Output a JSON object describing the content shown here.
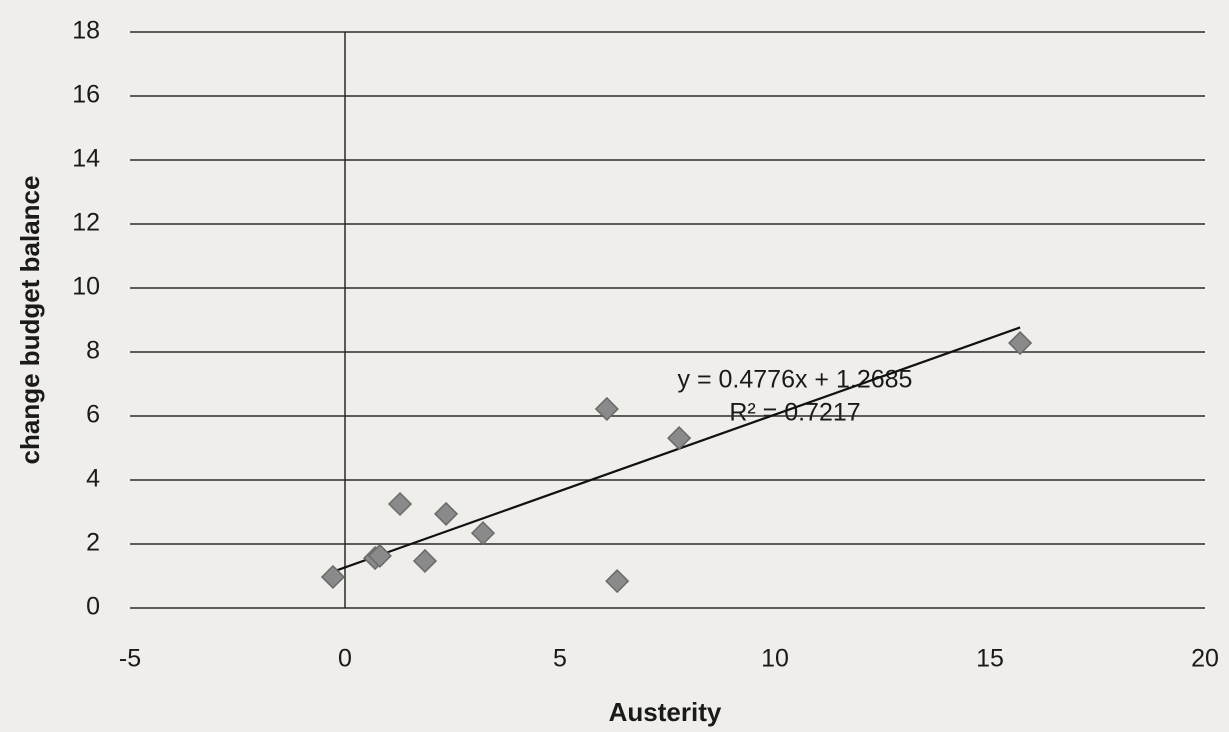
{
  "chart_data": {
    "type": "scatter",
    "xlabel": "Austerity",
    "ylabel": "change budget balance",
    "x": [
      -0.28,
      0.7,
      0.81,
      1.28,
      1.86,
      2.35,
      3.21,
      6.09,
      6.33,
      7.77,
      15.7
    ],
    "values": [
      0.97,
      1.56,
      1.63,
      3.25,
      1.47,
      2.94,
      2.34,
      6.22,
      0.84,
      5.31,
      8.28
    ],
    "color": "#8a8a8a",
    "xlim": [
      -5,
      20
    ],
    "xticks": [
      -5,
      0,
      5,
      10,
      15,
      20
    ],
    "ylim": [
      0,
      18
    ],
    "yticks": [
      0,
      2,
      4,
      6,
      8,
      10,
      12,
      14,
      16,
      18
    ],
    "grid": true,
    "trendline": {
      "slope": 0.4776,
      "intercept": 1.2685,
      "label": "y = 0.4776x + 1.2685",
      "r2_label": "R² = 0.7217"
    }
  }
}
